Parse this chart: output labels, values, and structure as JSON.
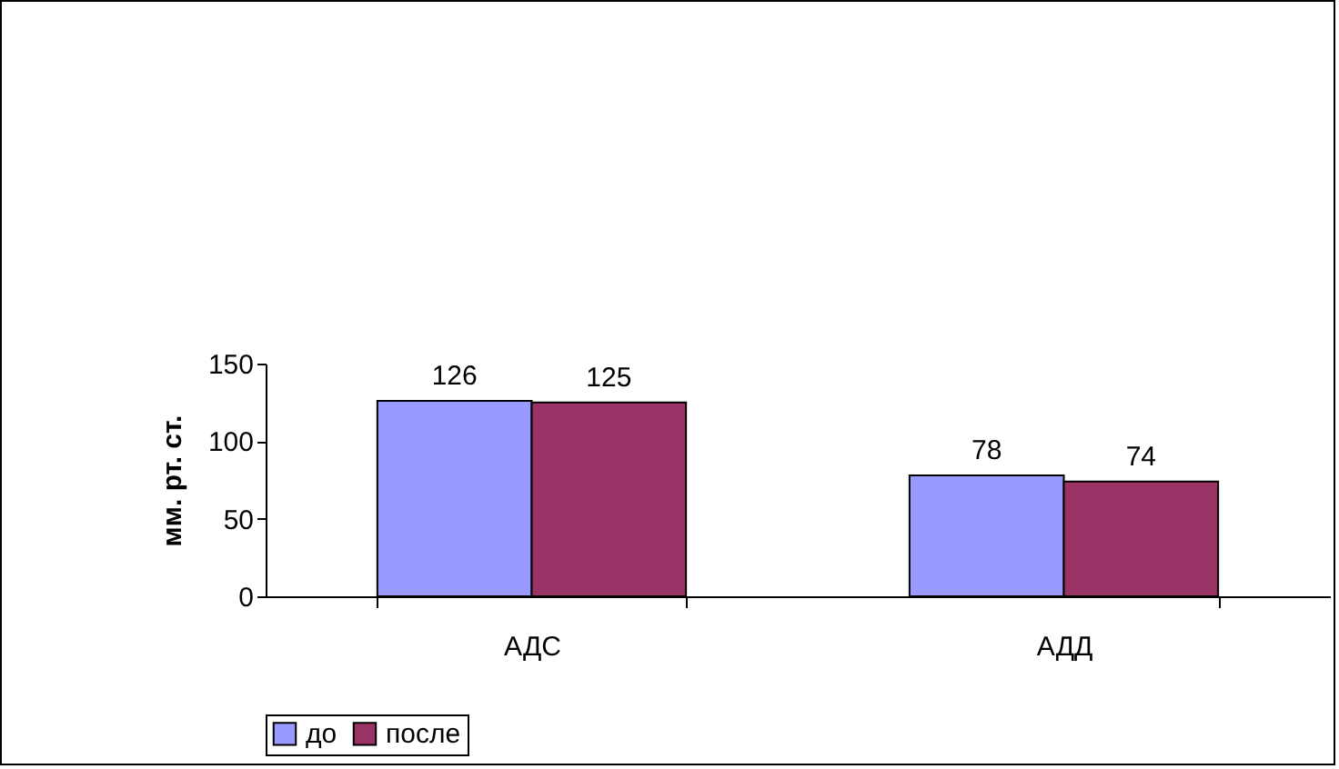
{
  "chart_data": {
    "type": "bar",
    "ylabel": "мм. рт. ст.",
    "categories": [
      "АДС",
      "АДД"
    ],
    "series": [
      {
        "name": "до",
        "color": "#9999ff",
        "values": [
          126,
          78
        ]
      },
      {
        "name": "после",
        "color": "#993366",
        "values": [
          125,
          74
        ]
      }
    ],
    "ylim": [
      0,
      150
    ],
    "yticks": [
      0,
      50,
      100,
      150
    ],
    "data_labels": true,
    "legend": "bottom",
    "grid": false
  }
}
